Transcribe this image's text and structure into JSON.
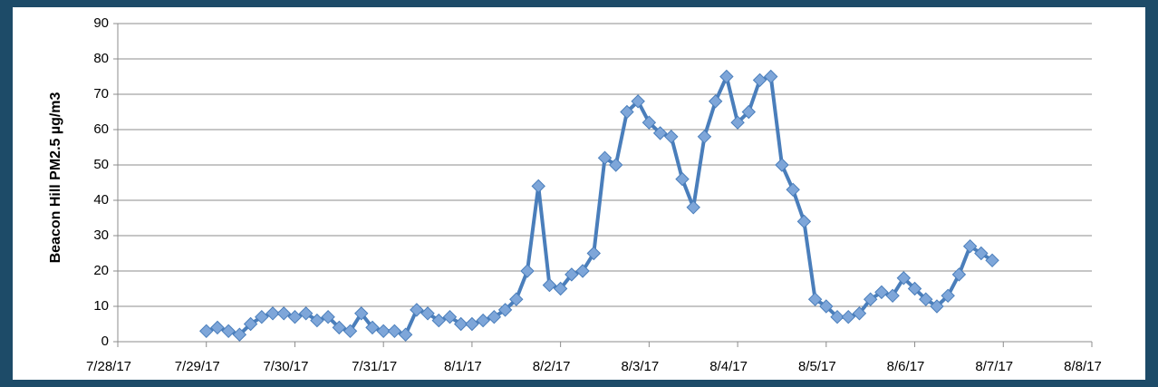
{
  "chart_data": {
    "type": "line",
    "y_label": "Beacon Hill PM2.5 µg/m3",
    "xlim": [
      42944,
      42955
    ],
    "xticks": [
      {
        "value": 42944,
        "label": "7/28/17"
      },
      {
        "value": 42945,
        "label": "7/29/17"
      },
      {
        "value": 42946,
        "label": "7/30/17"
      },
      {
        "value": 42947,
        "label": "7/31/17"
      },
      {
        "value": 42948,
        "label": "8/1/17"
      },
      {
        "value": 42949,
        "label": "8/2/17"
      },
      {
        "value": 42950,
        "label": "8/3/17"
      },
      {
        "value": 42951,
        "label": "8/4/17"
      },
      {
        "value": 42952,
        "label": "8/5/17"
      },
      {
        "value": 42953,
        "label": "8/6/17"
      },
      {
        "value": 42954,
        "label": "8/7/17"
      },
      {
        "value": 42955,
        "label": "8/8/17"
      }
    ],
    "ylim": [
      0,
      90
    ],
    "yticks": [
      0,
      10,
      20,
      30,
      40,
      50,
      60,
      70,
      80,
      90
    ],
    "grid": true,
    "color": "#4a7ebb",
    "marker_color": "#7ea6d9",
    "x": [
      42945,
      42945.125,
      42945.25,
      42945.375,
      42945.5,
      42945.625,
      42945.75,
      42945.875,
      42946,
      42946.125,
      42946.25,
      42946.375,
      42946.5,
      42946.625,
      42946.75,
      42946.875,
      42947,
      42947.125,
      42947.25,
      42947.375,
      42947.5,
      42947.625,
      42947.75,
      42947.875,
      42948,
      42948.125,
      42948.25,
      42948.375,
      42948.5,
      42948.625,
      42948.75,
      42948.875,
      42949,
      42949.125,
      42949.25,
      42949.375,
      42949.5,
      42949.625,
      42949.75,
      42949.875,
      42950,
      42950.125,
      42950.25,
      42950.375,
      42950.5,
      42950.625,
      42950.75,
      42950.875,
      42951,
      42951.125,
      42951.25,
      42951.375,
      42951.5,
      42951.625,
      42951.75,
      42951.875,
      42952,
      42952.125,
      42952.25,
      42952.375,
      42952.5,
      42952.625,
      42952.75,
      42952.875,
      42953,
      42953.125,
      42953.25,
      42953.375,
      42953.5,
      42953.625,
      42953.75,
      42953.875
    ],
    "values": [
      3,
      4,
      3,
      2,
      5,
      7,
      8,
      8,
      7,
      8,
      6,
      7,
      4,
      3,
      8,
      4,
      3,
      3,
      2,
      9,
      8,
      6,
      7,
      5,
      5,
      6,
      7,
      9,
      12,
      20,
      44,
      16,
      15,
      19,
      20,
      25,
      52,
      50,
      65,
      68,
      62,
      59,
      58,
      46,
      38,
      58,
      68,
      75,
      62,
      65,
      74,
      75,
      50,
      43,
      34,
      12,
      10,
      7,
      7,
      8,
      12,
      14,
      13,
      18,
      15,
      12,
      10,
      13,
      19,
      27,
      25,
      23
    ]
  }
}
